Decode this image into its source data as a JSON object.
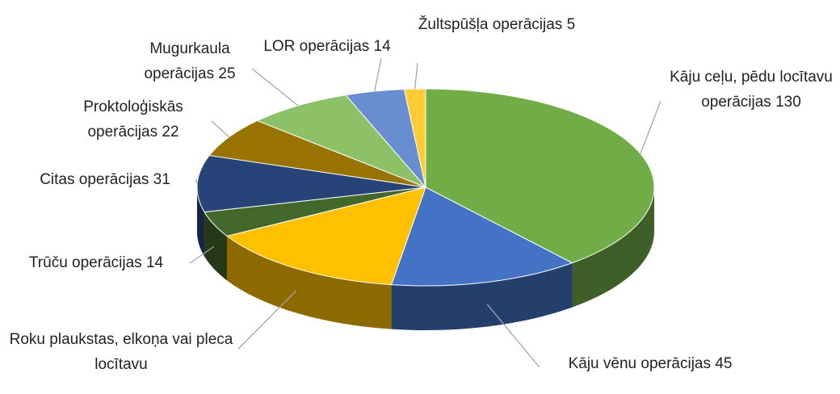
{
  "chart_data": {
    "type": "pie3d",
    "categories": [
      "Kāju ceļu, pēdu locītavu operācijas",
      "Kāju vēnu operācijas",
      "Roku plaukstas, elkoņa vai pleca locītavu",
      "Trūču operācijas",
      "Citas operācijas",
      "Proktoloģiskās operācijas",
      "Mugurkaula operācijas",
      "LOR operācijas",
      "Žultspūšļa operācijas"
    ],
    "values": [
      130,
      45,
      48,
      14,
      31,
      22,
      25,
      14,
      5
    ],
    "value_labels": [
      "130",
      "45",
      null,
      "14",
      "31",
      "22",
      "25",
      "14",
      "5"
    ],
    "colors": [
      "#70ad47",
      "#4472c4",
      "#ffc000",
      "#43682b",
      "#264478",
      "#997300",
      "#8cc168",
      "#698ed0",
      "#ffcd33"
    ]
  }
}
